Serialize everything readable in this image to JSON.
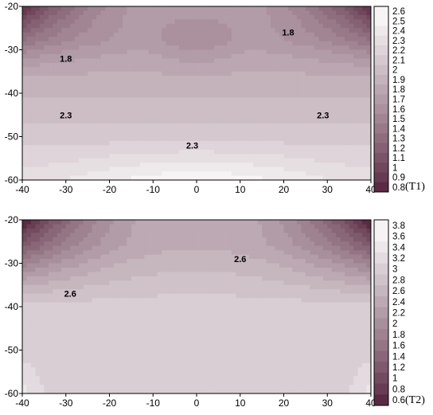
{
  "chart_data": [
    {
      "type": "heatmap",
      "subtype": "filled-contour",
      "panel_label": "(T1)",
      "xlim": [
        -40,
        40
      ],
      "ylim": [
        -60,
        -20
      ],
      "x_ticks": [
        -40,
        -30,
        -20,
        -10,
        0,
        10,
        20,
        30,
        40
      ],
      "y_ticks": [
        -20,
        -30,
        -40,
        -50,
        -60
      ],
      "colorbar_ticks": [
        2.6,
        2.5,
        2.4,
        2.3,
        2.2,
        2.1,
        2,
        1.9,
        1.8,
        1.7,
        1.6,
        1.5,
        1.4,
        1.3,
        1.2,
        1.1,
        1,
        0.9,
        0.8
      ],
      "color_low": "#5a2a42",
      "color_high": "#ffffff",
      "contour_labels": [
        {
          "text": "1.8",
          "x": -30,
          "y": -32
        },
        {
          "text": "1.8",
          "x": 21,
          "y": -26
        },
        {
          "text": "2.3",
          "x": -30,
          "y": -45
        },
        {
          "text": "2.3",
          "x": -1,
          "y": -52
        },
        {
          "text": "2.3",
          "x": 29,
          "y": -45
        }
      ]
    },
    {
      "type": "heatmap",
      "subtype": "filled-contour",
      "panel_label": "(T2)",
      "xlim": [
        -40,
        40
      ],
      "ylim": [
        -60,
        -20
      ],
      "x_ticks": [
        -40,
        -30,
        -20,
        -10,
        0,
        10,
        20,
        30,
        40
      ],
      "y_ticks": [
        -20,
        -30,
        -40,
        -50,
        -60
      ],
      "colorbar_ticks": [
        3.8,
        3.6,
        3.4,
        3.2,
        3,
        2.8,
        2.6,
        2.4,
        2.2,
        2,
        1.8,
        1.6,
        1.4,
        1.2,
        1,
        0.8,
        0.6
      ],
      "color_low": "#5a2a42",
      "color_high": "#ffffff",
      "contour_labels": [
        {
          "text": "2.6",
          "x": 10,
          "y": -29
        },
        {
          "text": "2.6",
          "x": -29,
          "y": -37
        }
      ]
    }
  ]
}
